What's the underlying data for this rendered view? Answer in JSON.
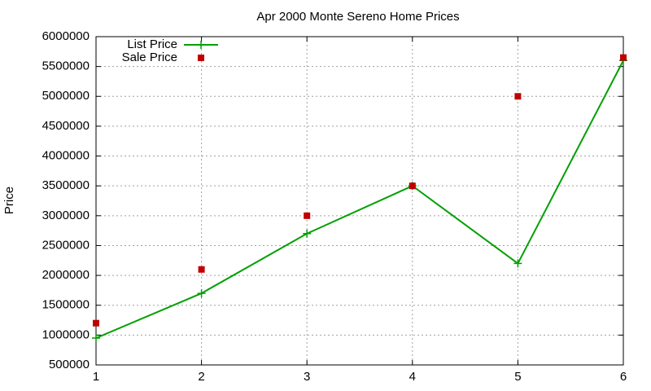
{
  "chart_data": {
    "type": "line",
    "title": "Apr 2000 Monte Sereno Home Prices",
    "y_label": "Price",
    "x": [
      1,
      2,
      3,
      4,
      5,
      6
    ],
    "xlim": [
      1,
      6
    ],
    "xticks": [
      1,
      2,
      3,
      4,
      5,
      6
    ],
    "ylim": [
      500000,
      6000000
    ],
    "yticks": [
      500000,
      1000000,
      1500000,
      2000000,
      2500000,
      3000000,
      3500000,
      4000000,
      4500000,
      5000000,
      5500000,
      6000000
    ],
    "grid": true,
    "legend": "top-left",
    "series": [
      {
        "name": "List Price",
        "color": "#00a000",
        "style": "linespoints",
        "marker": "plus",
        "values": [
          950000,
          1700000,
          2700000,
          3500000,
          2200000,
          5600000
        ]
      },
      {
        "name": "Sale Price",
        "color": "#c00000",
        "style": "points",
        "marker": "square",
        "values": [
          1200000,
          2100000,
          3000000,
          3500000,
          5000000,
          5650000
        ]
      }
    ]
  }
}
